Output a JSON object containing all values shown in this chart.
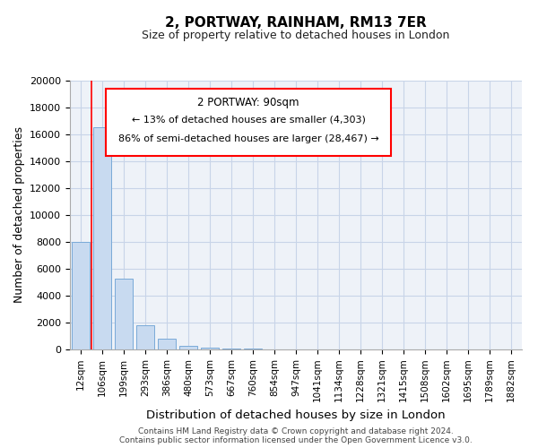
{
  "title": "2, PORTWAY, RAINHAM, RM13 7ER",
  "subtitle": "Size of property relative to detached houses in London",
  "xlabel": "Distribution of detached houses by size in London",
  "ylabel": "Number of detached properties",
  "bar_labels": [
    "12sqm",
    "106sqm",
    "199sqm",
    "293sqm",
    "386sqm",
    "480sqm",
    "573sqm",
    "667sqm",
    "760sqm",
    "854sqm",
    "947sqm",
    "1041sqm",
    "1134sqm",
    "1228sqm",
    "1321sqm",
    "1415sqm",
    "1508sqm",
    "1602sqm",
    "1695sqm",
    "1789sqm",
    "1882sqm"
  ],
  "bar_values": [
    8000,
    16500,
    5300,
    1800,
    800,
    300,
    150,
    100,
    50,
    30,
    0,
    0,
    0,
    0,
    0,
    0,
    0,
    0,
    0,
    0,
    0
  ],
  "bar_color": "#c8daf0",
  "bar_edge_color": "#7aaad8",
  "ylim": [
    0,
    20000
  ],
  "yticks": [
    0,
    2000,
    4000,
    6000,
    8000,
    10000,
    12000,
    14000,
    16000,
    18000,
    20000
  ],
  "annotation_title": "2 PORTWAY: 90sqm",
  "annotation_line1": "← 13% of detached houses are smaller (4,303)",
  "annotation_line2": "86% of semi-detached houses are larger (28,467) →",
  "red_line_x": 0,
  "footer_line1": "Contains HM Land Registry data © Crown copyright and database right 2024.",
  "footer_line2": "Contains public sector information licensed under the Open Government Licence v3.0.",
  "grid_color": "#c8d4e8",
  "background_color": "#eef2f8"
}
